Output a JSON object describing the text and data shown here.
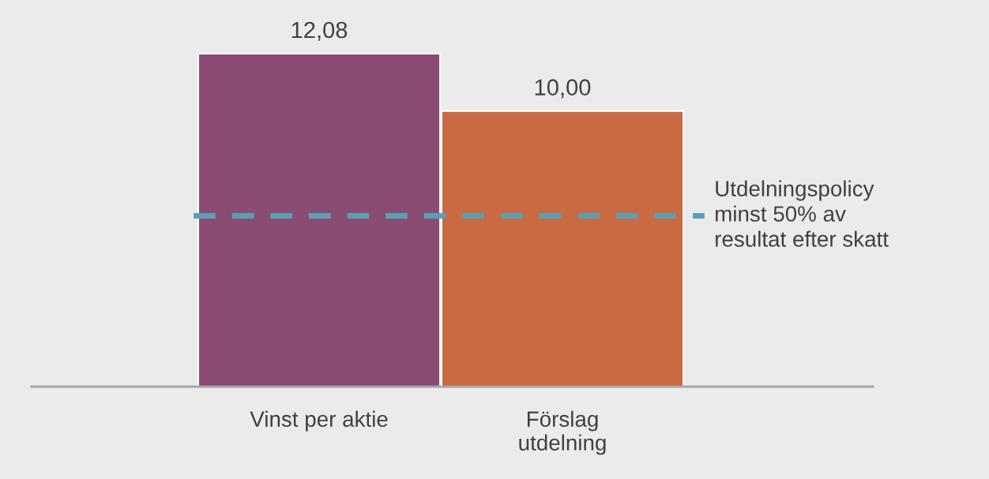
{
  "chart_data": {
    "type": "bar",
    "categories": [
      "Vinst per aktie",
      "Förslag\nutdelning"
    ],
    "values": [
      12.08,
      10.0
    ],
    "colors": [
      "#8b4c74",
      "#c96a42"
    ],
    "value_labels": [
      "12,08",
      "10,00"
    ],
    "ref_lines": [
      {
        "axis": "y",
        "value": 6.2,
        "label": "Utdelningspolicy\nminst 50% av\nresultat efter skatt",
        "color": "#5b9fb5",
        "line_style": "dashed"
      }
    ],
    "grid": false
  }
}
